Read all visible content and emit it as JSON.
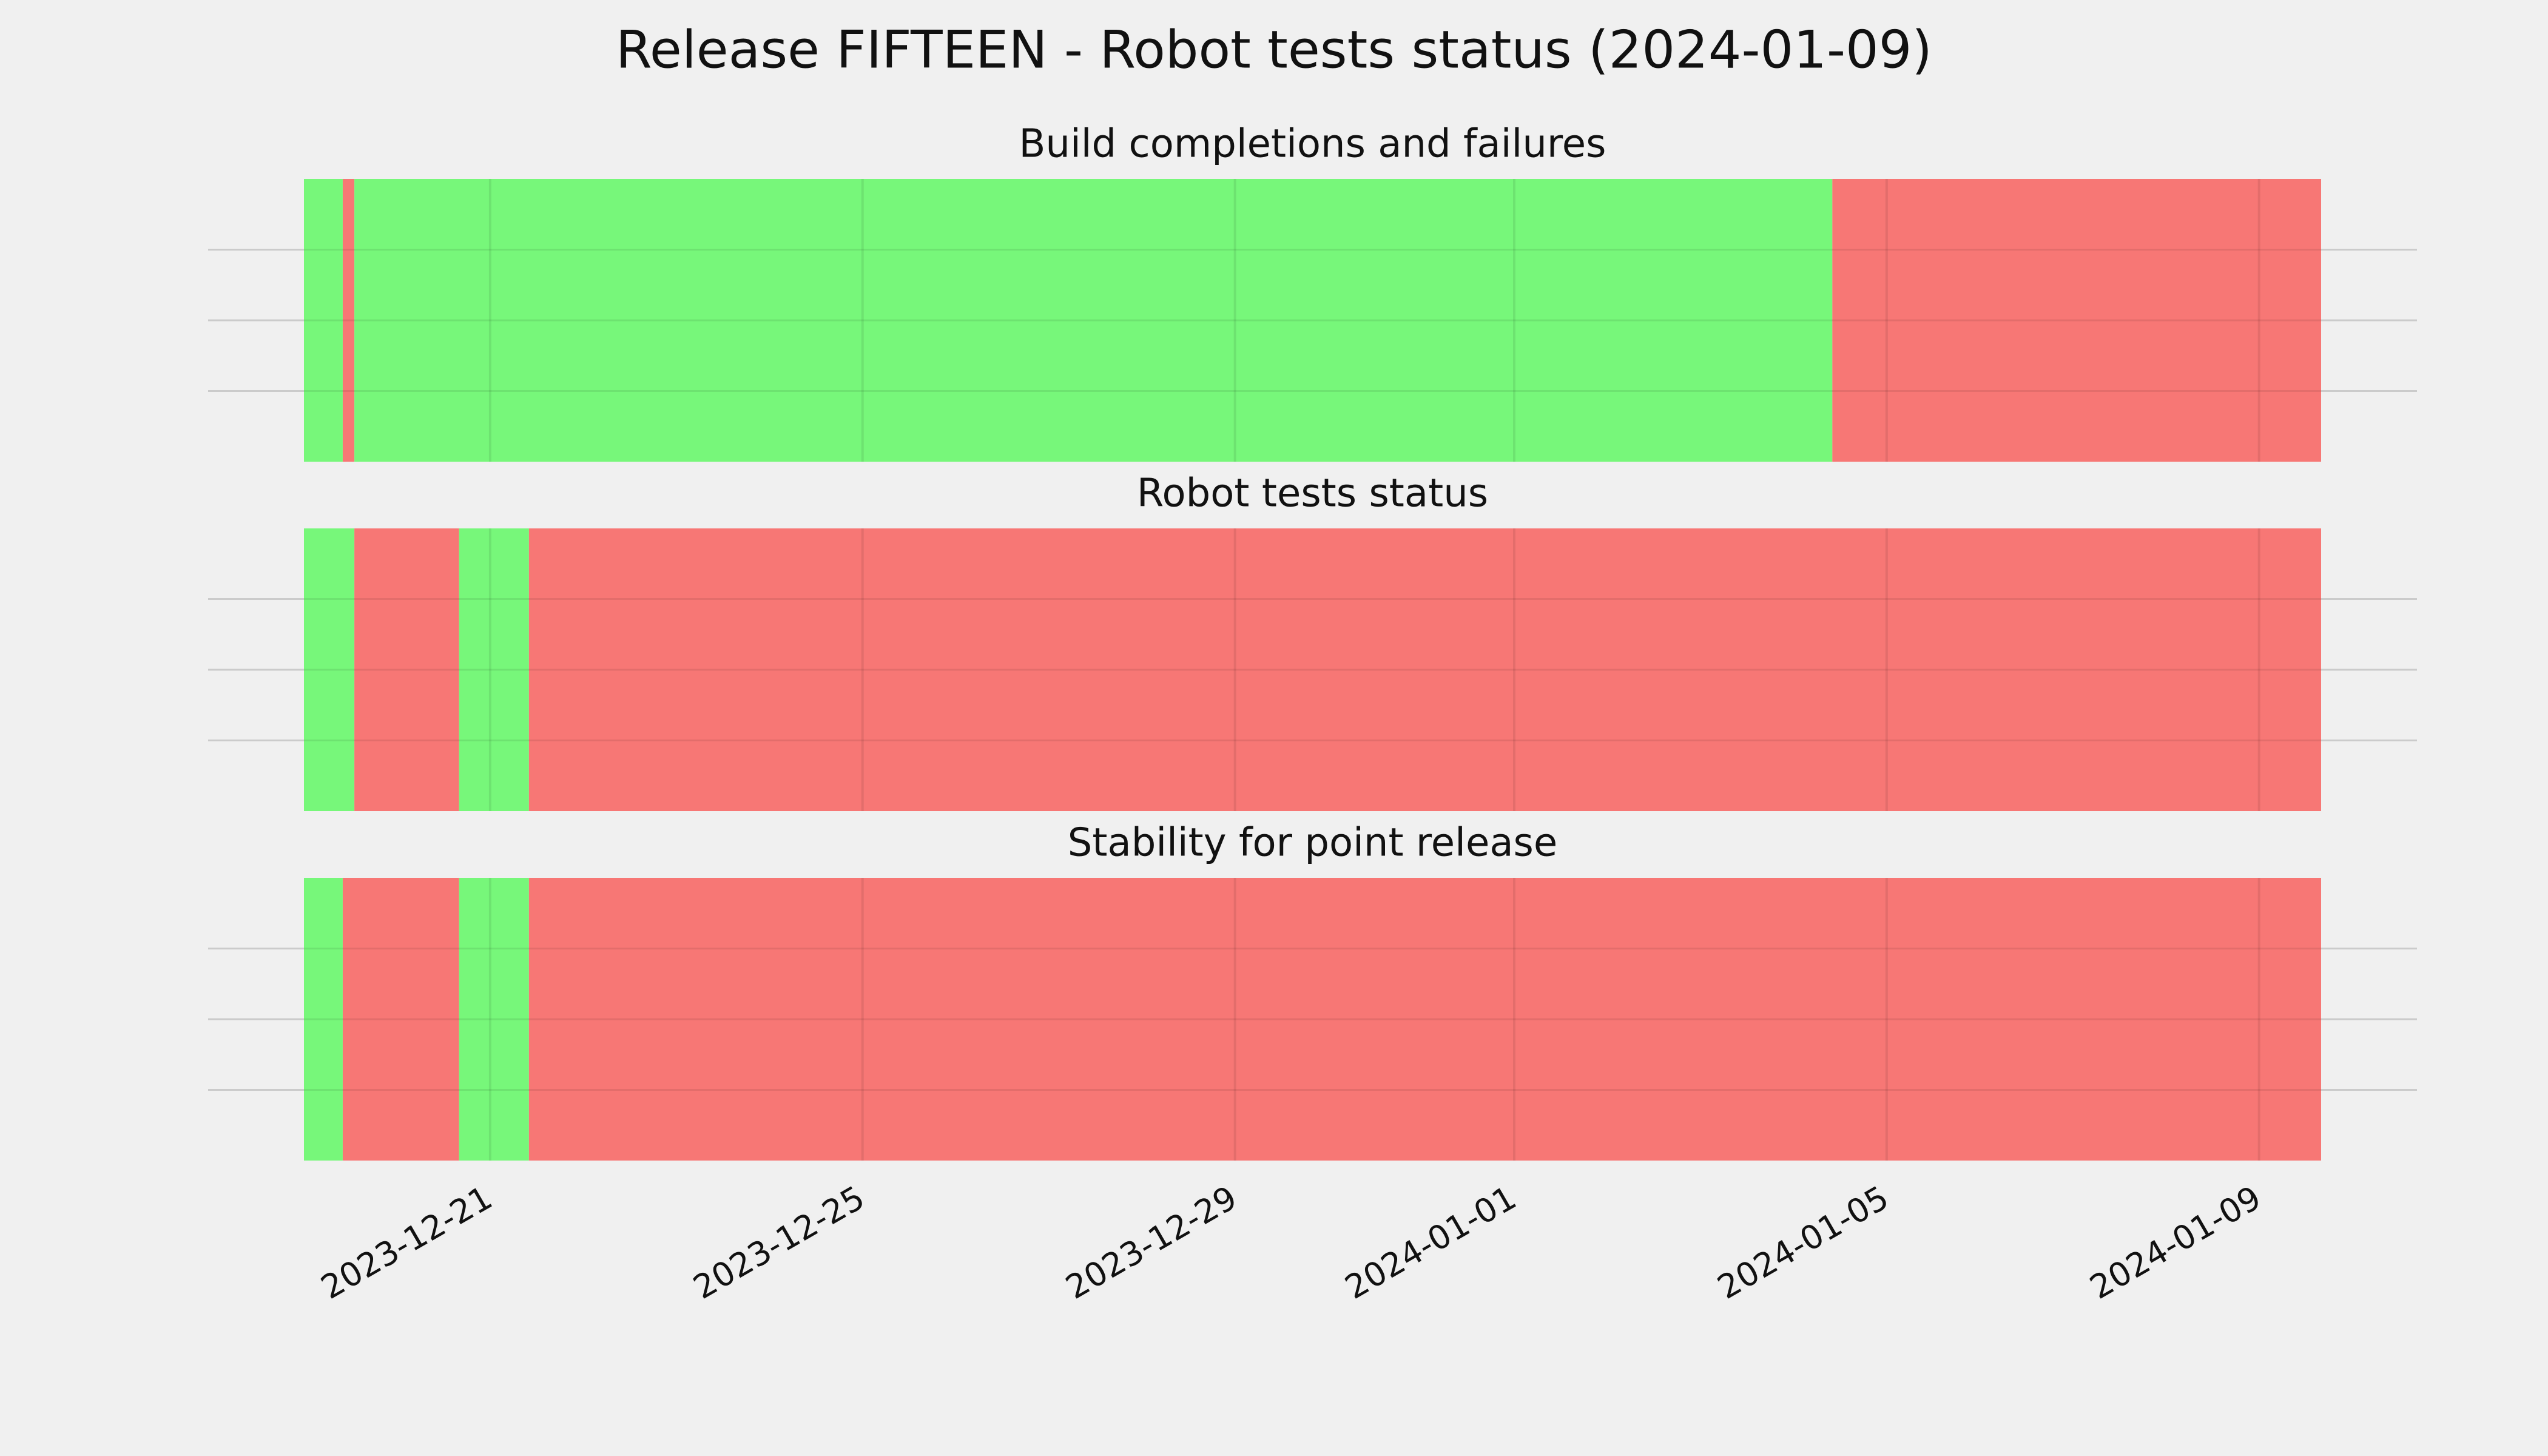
{
  "chart_data": [
    {
      "type": "timeline",
      "suptitle": "Release FIFTEEN - Robot tests status (2024-01-09)",
      "title": "Build completions and failures",
      "segments": [
        {
          "start": "2023-12-19T00:00",
          "end": "2023-12-19T10:00",
          "color": "#77f77a"
        },
        {
          "start": "2023-12-19T10:00",
          "end": "2023-12-19T13:00",
          "color": "#f77775"
        },
        {
          "start": "2023-12-19T13:00",
          "end": "2024-01-04T10:00",
          "color": "#77f77a"
        },
        {
          "start": "2024-01-04T10:00",
          "end": "2024-01-09T16:00",
          "color": "#f77775"
        }
      ],
      "xlim": [
        "2023-12-19T00:00",
        "2024-01-09T16:00"
      ],
      "xticks": [
        "2023-12-21",
        "2023-12-25",
        "2023-12-29",
        "2024-01-01",
        "2024-01-05",
        "2024-01-09"
      ],
      "ylim": [
        0,
        1
      ],
      "yticks": [
        0.25,
        0.5,
        0.75
      ],
      "grid": true
    },
    {
      "type": "timeline",
      "title": "Robot tests status",
      "segments": [
        {
          "start": "2023-12-19T00:00",
          "end": "2023-12-19T13:00",
          "color": "#77f77a"
        },
        {
          "start": "2023-12-19T13:00",
          "end": "2023-12-20T16:00",
          "color": "#f77775"
        },
        {
          "start": "2023-12-20T16:00",
          "end": "2023-12-21T10:00",
          "color": "#77f77a"
        },
        {
          "start": "2023-12-21T10:00",
          "end": "2024-01-09T16:00",
          "color": "#f77775"
        }
      ],
      "xlim": [
        "2023-12-19T00:00",
        "2024-01-09T16:00"
      ],
      "xticks": [
        "2023-12-21",
        "2023-12-25",
        "2023-12-29",
        "2024-01-01",
        "2024-01-05",
        "2024-01-09"
      ],
      "ylim": [
        0,
        1
      ],
      "yticks": [
        0.25,
        0.5,
        0.75
      ],
      "grid": true
    },
    {
      "type": "timeline",
      "title": "Stability for point release",
      "segments": [
        {
          "start": "2023-12-19T00:00",
          "end": "2023-12-19T10:00",
          "color": "#77f77a"
        },
        {
          "start": "2023-12-19T10:00",
          "end": "2023-12-20T16:00",
          "color": "#f77775"
        },
        {
          "start": "2023-12-20T16:00",
          "end": "2023-12-21T10:00",
          "color": "#77f77a"
        },
        {
          "start": "2023-12-21T10:00",
          "end": "2024-01-09T16:00",
          "color": "#f77775"
        }
      ],
      "xlim": [
        "2023-12-19T00:00",
        "2024-01-09T16:00"
      ],
      "xticks": [
        "2023-12-21",
        "2023-12-25",
        "2023-12-29",
        "2024-01-01",
        "2024-01-05",
        "2024-01-09"
      ],
      "ylim": [
        0,
        1
      ],
      "yticks": [
        0.25,
        0.5,
        0.75
      ],
      "grid": true,
      "show_xtick_labels": true
    }
  ]
}
